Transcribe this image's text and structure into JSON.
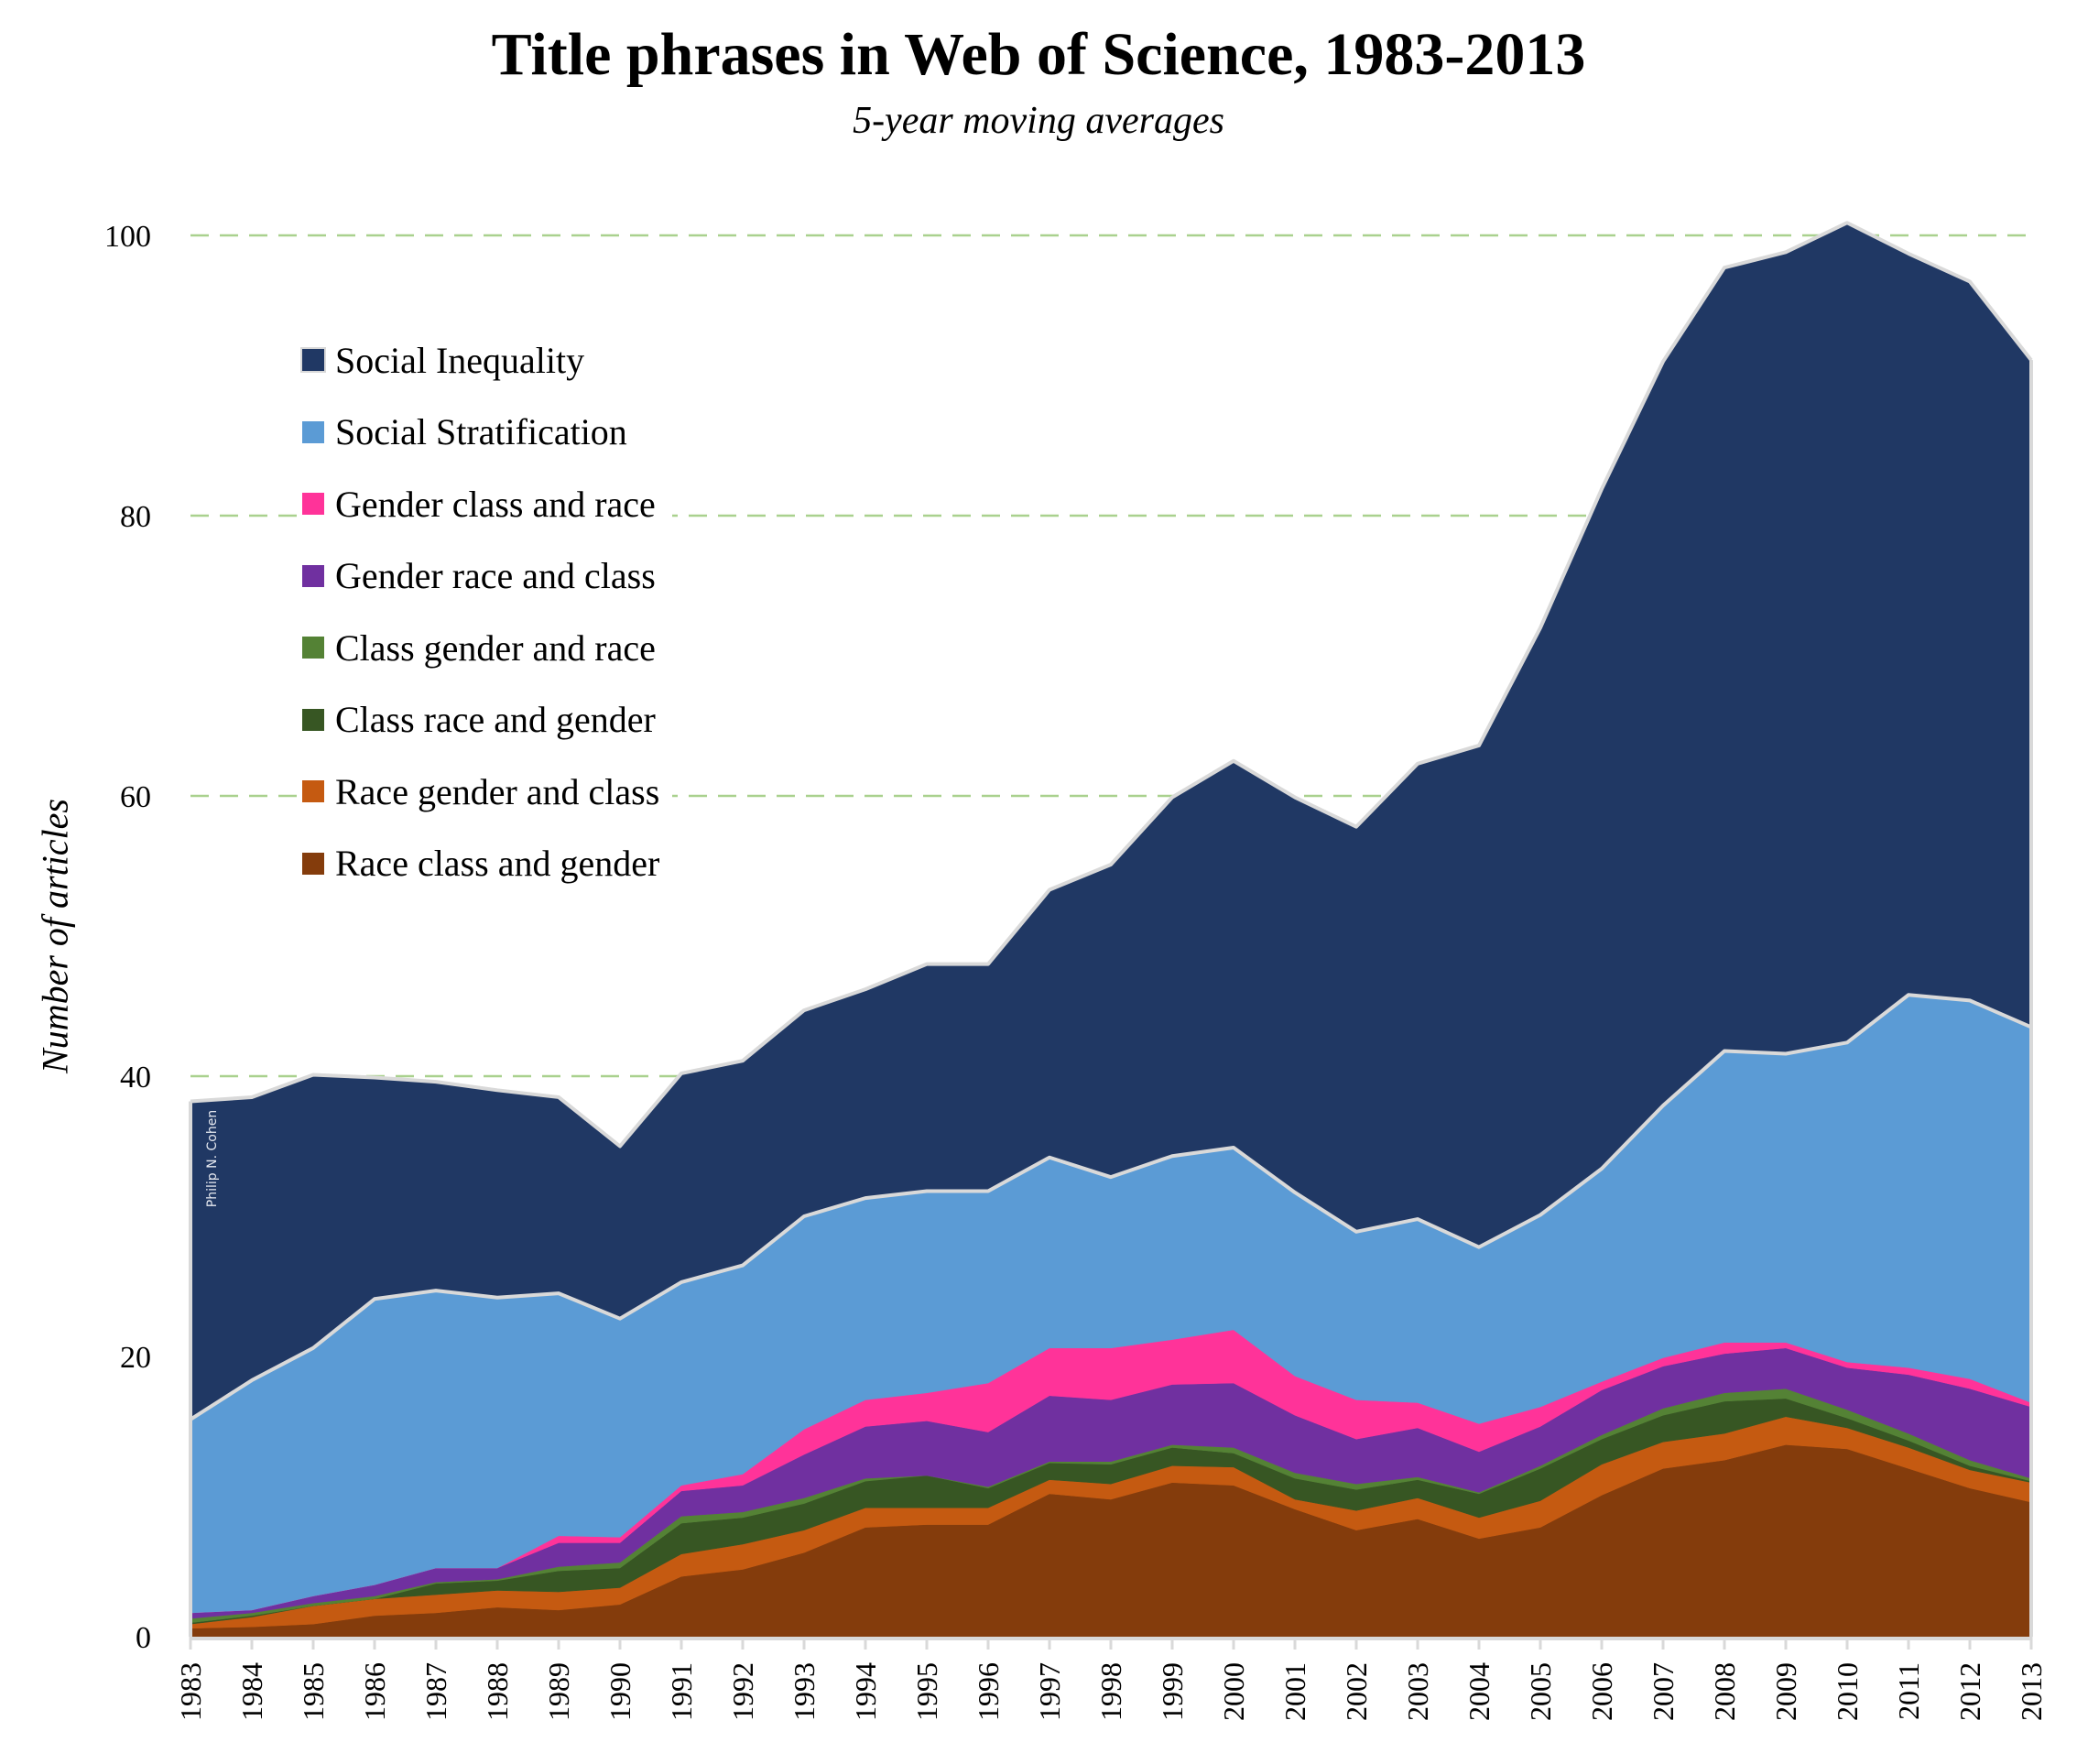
{
  "chart_data": {
    "type": "area",
    "stacked": true,
    "title": "Title phrases in Web of Science, 1983-2013",
    "subtitle": "5-year moving averages",
    "xlabel": "",
    "ylabel": "Number of articles",
    "ylim": [
      0,
      100
    ],
    "yticks": [
      0,
      20,
      40,
      60,
      80,
      100
    ],
    "grid": "horizontal dashed",
    "legend_position": "top-left",
    "watermark": "Philip N. Cohen",
    "x": [
      "1983",
      "1984",
      "1985",
      "1986",
      "1987",
      "1988",
      "1989",
      "1990",
      "1991",
      "1992",
      "1993",
      "1994",
      "1995",
      "1996",
      "1997",
      "1998",
      "1999",
      "2000",
      "2001",
      "2002",
      "2003",
      "2004",
      "2005",
      "2006",
      "2007",
      "2008",
      "2009",
      "2010",
      "2011",
      "2012",
      "2013"
    ],
    "series": [
      {
        "name": "Race class and gender",
        "color": "#843C0C",
        "values": [
          0.6,
          0.7,
          0.9,
          1.5,
          1.7,
          2.1,
          1.9,
          2.3,
          4.3,
          4.8,
          6.0,
          7.8,
          8.0,
          8.0,
          10.2,
          9.8,
          11.0,
          10.8,
          9.1,
          7.6,
          8.4,
          7.0,
          7.8,
          10.1,
          12.0,
          12.6,
          13.7,
          13.4,
          12.0,
          10.6,
          9.6
        ]
      },
      {
        "name": "Race gender and class",
        "color": "#C55A11",
        "values": [
          0.3,
          0.7,
          1.3,
          1.2,
          1.3,
          1.2,
          1.3,
          1.2,
          1.6,
          1.8,
          1.6,
          1.4,
          1.2,
          1.2,
          1.0,
          1.1,
          1.2,
          1.3,
          0.7,
          1.4,
          1.5,
          1.5,
          1.9,
          2.2,
          1.9,
          1.9,
          2.0,
          1.5,
          1.5,
          1.3,
          1.4
        ]
      },
      {
        "name": "Class race and gender",
        "color": "#375623",
        "values": [
          0.1,
          0.1,
          0.0,
          0.0,
          0.8,
          0.7,
          1.5,
          1.4,
          2.2,
          1.9,
          1.9,
          1.9,
          2.3,
          1.4,
          1.2,
          1.4,
          1.3,
          1.0,
          1.5,
          1.5,
          1.3,
          1.7,
          2.3,
          1.8,
          1.9,
          2.3,
          1.3,
          0.7,
          0.5,
          0.3,
          0.1
        ]
      },
      {
        "name": "Class gender and race",
        "color": "#548235",
        "values": [
          0.3,
          0.2,
          0.2,
          0.2,
          0.1,
          0.1,
          0.3,
          0.4,
          0.5,
          0.4,
          0.4,
          0.2,
          0.0,
          0.1,
          0.1,
          0.2,
          0.2,
          0.4,
          0.4,
          0.4,
          0.2,
          0.1,
          0.2,
          0.3,
          0.5,
          0.6,
          0.7,
          0.6,
          0.5,
          0.4,
          0.2
        ]
      },
      {
        "name": "Gender race and class",
        "color": "#7030A0",
        "values": [
          0.4,
          0.2,
          0.5,
          0.8,
          1.0,
          0.8,
          1.7,
          1.4,
          1.8,
          1.9,
          3.1,
          3.7,
          3.9,
          3.9,
          4.7,
          4.4,
          4.3,
          4.6,
          4.1,
          3.2,
          3.5,
          2.9,
          2.8,
          3.2,
          3.0,
          2.8,
          2.9,
          3.0,
          4.2,
          5.1,
          5.1
        ]
      },
      {
        "name": "Gender class and race",
        "color": "#FF3399",
        "values": [
          0.0,
          0.0,
          0.0,
          0.0,
          0.0,
          0.0,
          0.5,
          0.4,
          0.4,
          0.8,
          1.8,
          1.9,
          2.0,
          3.5,
          3.4,
          3.7,
          3.2,
          3.8,
          2.8,
          2.8,
          1.8,
          2.0,
          1.4,
          0.6,
          0.6,
          0.8,
          0.4,
          0.4,
          0.5,
          0.7,
          0.3
        ]
      },
      {
        "name": "Social Stratification",
        "color": "#5B9BD5",
        "values": [
          13.8,
          16.4,
          17.7,
          20.4,
          19.8,
          19.3,
          17.3,
          15.6,
          14.5,
          14.9,
          15.2,
          14.4,
          14.4,
          13.7,
          13.6,
          12.2,
          13.1,
          13.0,
          13.1,
          12.0,
          13.1,
          12.6,
          13.7,
          15.2,
          18.0,
          20.8,
          20.6,
          22.8,
          26.6,
          27.0,
          26.8
        ]
      },
      {
        "name": "Social Inequality",
        "color": "#203864",
        "values": [
          22.7,
          20.2,
          19.5,
          15.8,
          14.9,
          14.8,
          14.0,
          12.3,
          14.9,
          14.6,
          14.7,
          14.9,
          16.2,
          16.2,
          19.1,
          22.3,
          25.6,
          27.6,
          28.2,
          28.9,
          32.5,
          35.8,
          41.9,
          48.5,
          53.1,
          55.9,
          57.2,
          58.5,
          52.9,
          51.3,
          47.6
        ]
      }
    ]
  }
}
